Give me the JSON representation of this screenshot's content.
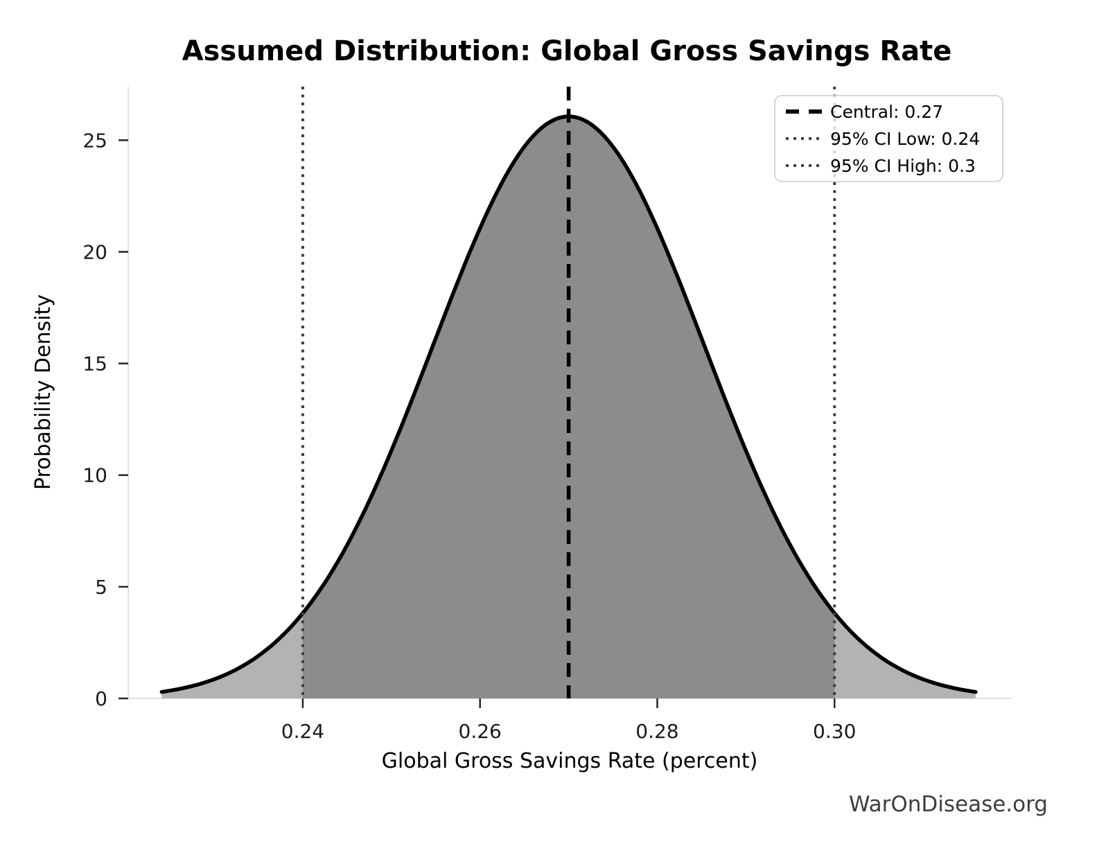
{
  "chart_data": {
    "type": "area",
    "title": "Assumed Distribution: Global Gross Savings Rate",
    "xlabel": "Global Gross Savings Rate (percent)",
    "ylabel": "Probability Density",
    "watermark": "WarOnDisease.org",
    "xlim": [
      0.2203,
      0.32
    ],
    "ylim": [
      0,
      27.4
    ],
    "x_ticks": [
      {
        "value": 0.24,
        "label": "0.24"
      },
      {
        "value": 0.26,
        "label": "0.26"
      },
      {
        "value": 0.28,
        "label": "0.28"
      },
      {
        "value": 0.3,
        "label": "0.30"
      }
    ],
    "y_ticks": [
      {
        "value": 0,
        "label": "0"
      },
      {
        "value": 5,
        "label": "5"
      },
      {
        "value": 10,
        "label": "10"
      },
      {
        "value": 15,
        "label": "15"
      },
      {
        "value": 20,
        "label": "20"
      },
      {
        "value": 25,
        "label": "25"
      }
    ],
    "distribution": {
      "shape": "normal",
      "mean": 0.27,
      "sd": 0.015306,
      "x_start": 0.224082,
      "x_end": 0.315918,
      "peak_density": 26.07
    },
    "central": {
      "value": 0.27,
      "label": "Central: 0.27",
      "line_style": "dashed",
      "color": "#000000"
    },
    "ci_low": {
      "value": 0.24,
      "label": "95% CI Low: 0.24",
      "line_style": "dotted",
      "color": "#3f3f3f"
    },
    "ci_high": {
      "value": 0.3,
      "label": "95% CI High: 0.3",
      "line_style": "dotted",
      "color": "#3f3f3f"
    },
    "legend": {
      "position": "upper right",
      "entries": [
        {
          "label": "Central: 0.27",
          "style": "dashed",
          "color": "#000000"
        },
        {
          "label": "95% CI Low: 0.24",
          "style": "dotted",
          "color": "#3f3f3f"
        },
        {
          "label": "95% CI High: 0.3",
          "style": "dotted",
          "color": "#3f3f3f"
        }
      ]
    },
    "colors": {
      "fill_inner": "#8c8c8c",
      "fill_outer": "#b3b3b3",
      "curve": "#000000",
      "spine": "#e2e2e2",
      "tick": "#262626"
    }
  }
}
